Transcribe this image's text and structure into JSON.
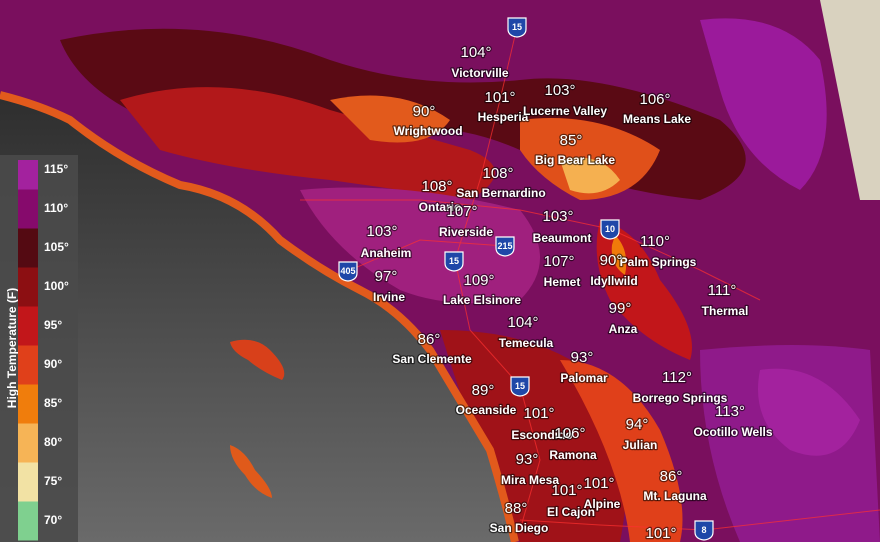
{
  "legend": {
    "title": "High Temperature (F)",
    "ticks": [
      "115°",
      "110°",
      "105°",
      "100°",
      "95°",
      "90°",
      "85°",
      "80°",
      "75°",
      "70°"
    ],
    "colors": [
      "#a3229e",
      "#860a6c",
      "#540a12",
      "#8c0f12",
      "#c2161a",
      "#e0401a",
      "#f07d0c",
      "#f6b456",
      "#f2e2a4",
      "#7fd08f"
    ]
  },
  "cities": [
    {
      "temp": "104°",
      "name": "Victorville"
    },
    {
      "temp": "101°",
      "name": "Hesperia"
    },
    {
      "temp": "103°",
      "name": "Lucerne Valley"
    },
    {
      "temp": "106°",
      "name": "Means Lake"
    },
    {
      "temp": "90°",
      "name": "Wrightwood"
    },
    {
      "temp": "85°",
      "name": "Big Bear Lake"
    },
    {
      "temp": "108°",
      "name": "San Bernardino"
    },
    {
      "temp": "108°",
      "name": "Ontario"
    },
    {
      "temp": "107°",
      "name": "Riverside"
    },
    {
      "temp": "103°",
      "name": "Beaumont"
    },
    {
      "temp": "110°",
      "name": "Palm Springs"
    },
    {
      "temp": "103°",
      "name": "Anaheim"
    },
    {
      "temp": "97°",
      "name": "Irvine"
    },
    {
      "temp": "107°",
      "name": "Hemet"
    },
    {
      "temp": "90°",
      "name": "Idyllwild"
    },
    {
      "temp": "109°",
      "name": "Lake Elsinore"
    },
    {
      "temp": "111°",
      "name": "Thermal"
    },
    {
      "temp": "99°",
      "name": "Anza"
    },
    {
      "temp": "104°",
      "name": "Temecula"
    },
    {
      "temp": "86°",
      "name": "San Clemente"
    },
    {
      "temp": "93°",
      "name": "Palomar"
    },
    {
      "temp": "112°",
      "name": "Borrego Springs"
    },
    {
      "temp": "89°",
      "name": "Oceanside"
    },
    {
      "temp": "101°",
      "name": "Escondido"
    },
    {
      "temp": "113°",
      "name": "Ocotillo Wells"
    },
    {
      "temp": "94°",
      "name": "Julian"
    },
    {
      "temp": "106°",
      "name": "Ramona"
    },
    {
      "temp": "86°",
      "name": "Mt. Laguna"
    },
    {
      "temp": "93°",
      "name": "Mira Mesa"
    },
    {
      "temp": "101°",
      "name": "Alpine"
    },
    {
      "temp": "101°",
      "name": "El Cajon"
    },
    {
      "temp": "88°",
      "name": "San Diego"
    },
    {
      "temp": "101°"
    }
  ],
  "highways": [
    "15",
    "10",
    "215",
    "15",
    "405",
    "15",
    "8"
  ]
}
